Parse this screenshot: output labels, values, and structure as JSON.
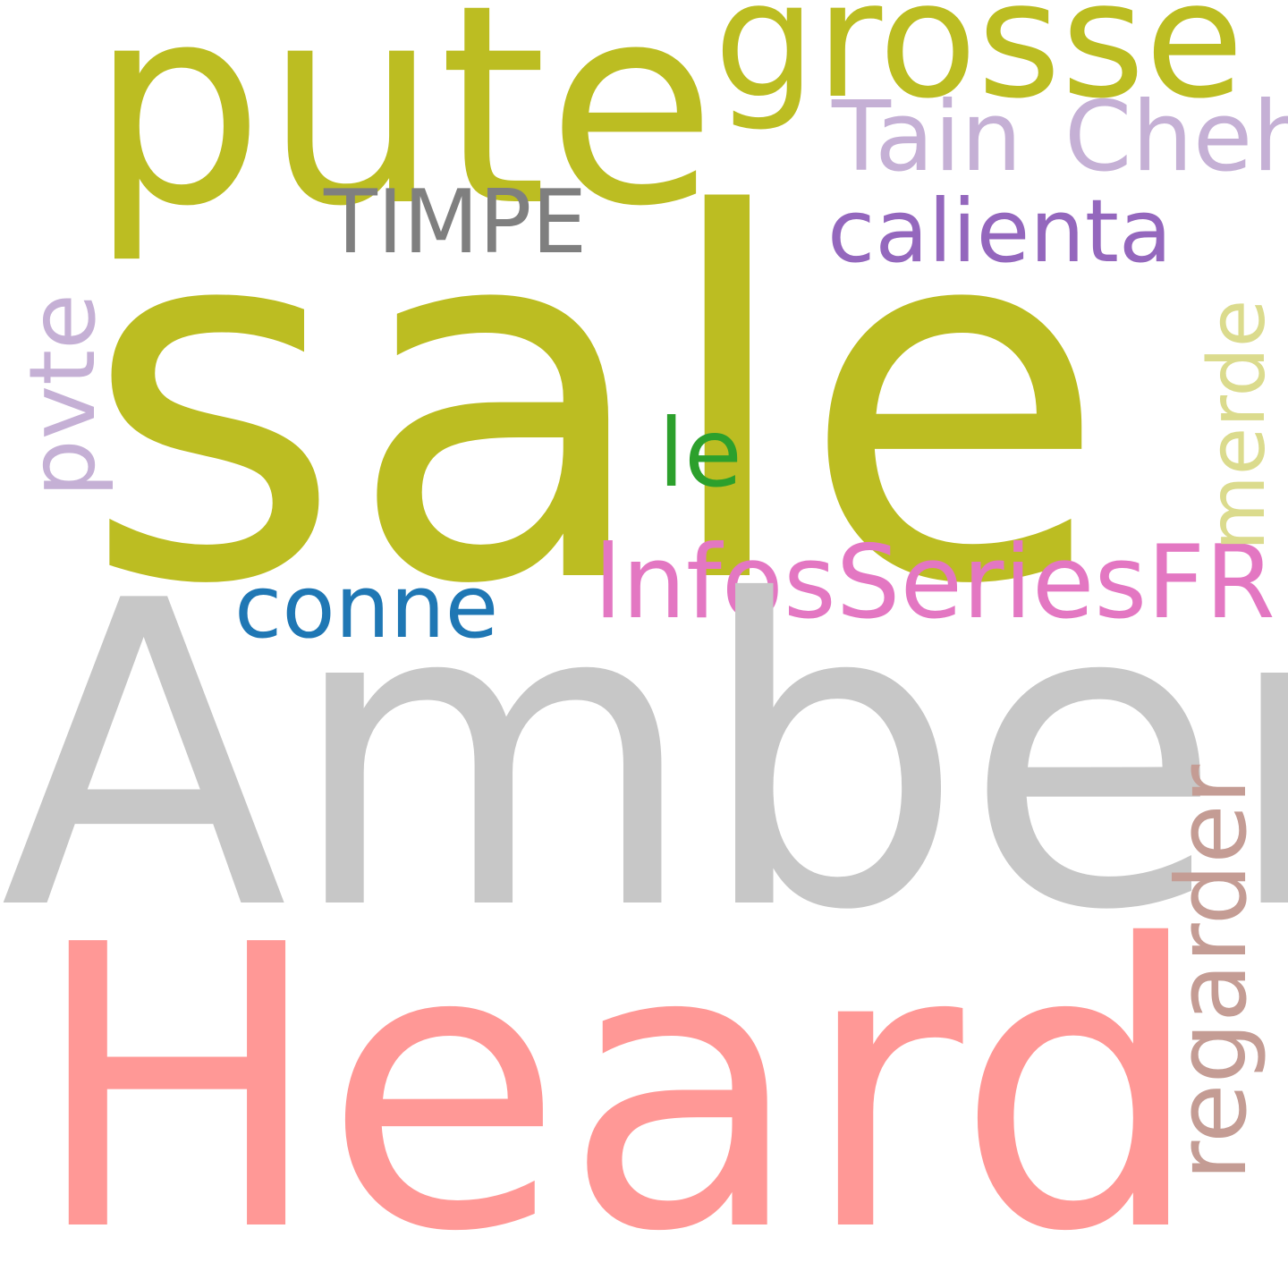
{
  "words": {
    "sale": {
      "text": "sale",
      "color": "#bcbd22"
    },
    "amber": {
      "text": "Amber",
      "color": "#c7c7c7"
    },
    "heard": {
      "text": "Heard",
      "color": "#ff9896"
    },
    "pute": {
      "text": "pute",
      "color": "#bcbd22"
    },
    "grosse": {
      "text": "grosse",
      "color": "#bcbd22"
    },
    "tain": {
      "text": "Tain",
      "color": "#c5b0d5"
    },
    "cheh": {
      "text": "Cheh",
      "color": "#c5b0d5"
    },
    "timpe": {
      "text": "TIMPE",
      "color": "#7f7f7f"
    },
    "calienta": {
      "text": "calienta",
      "color": "#9467bd"
    },
    "le": {
      "text": "le",
      "color": "#2ca02c"
    },
    "conne": {
      "text": "conne",
      "color": "#1f77b4"
    },
    "infos": {
      "text": "lnfosSeriesFR",
      "color": "#e377c2"
    },
    "pvte": {
      "text": "pvte",
      "color": "#c5b0d5"
    },
    "merde": {
      "text": "merde",
      "color": "#dbdb8d"
    },
    "regarder": {
      "text": "regarder",
      "color": "#c49c94"
    }
  }
}
